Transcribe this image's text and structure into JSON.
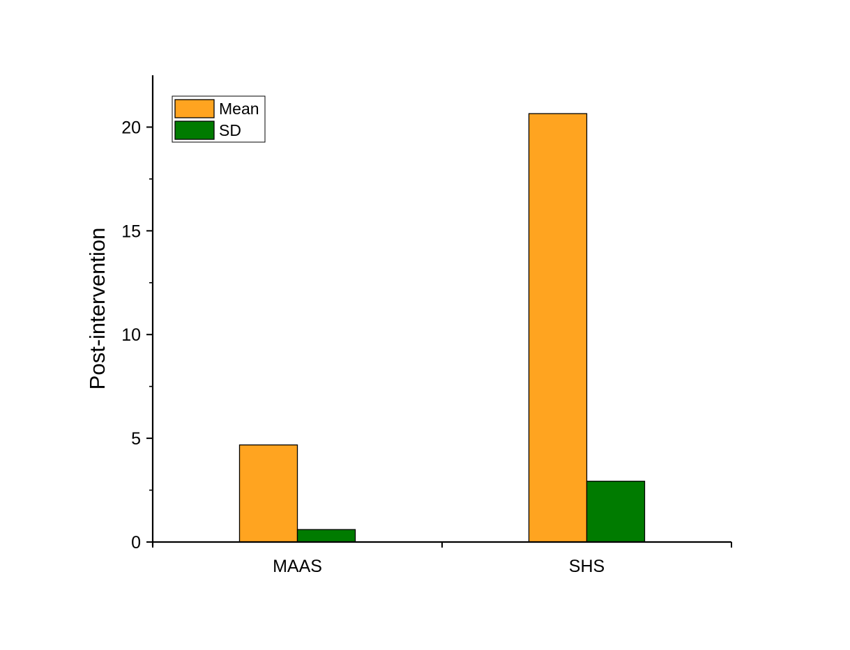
{
  "chart_data": {
    "type": "bar",
    "title": "",
    "xlabel": "",
    "ylabel": "Post-intervention",
    "categories": [
      "MAAS",
      "SHS"
    ],
    "series": [
      {
        "name": "Mean",
        "values": [
          4.68,
          20.65
        ],
        "color": "#FFA420"
      },
      {
        "name": "SD",
        "values": [
          0.6,
          2.93
        ],
        "color": "#007B00"
      }
    ],
    "ylim": [
      0,
      22.5
    ],
    "yticks": [
      0,
      5,
      10,
      15,
      20
    ],
    "ytick_labels": [
      "0",
      "5",
      "10",
      "15",
      "20"
    ],
    "grid": false,
    "legend_position": "top-left"
  }
}
